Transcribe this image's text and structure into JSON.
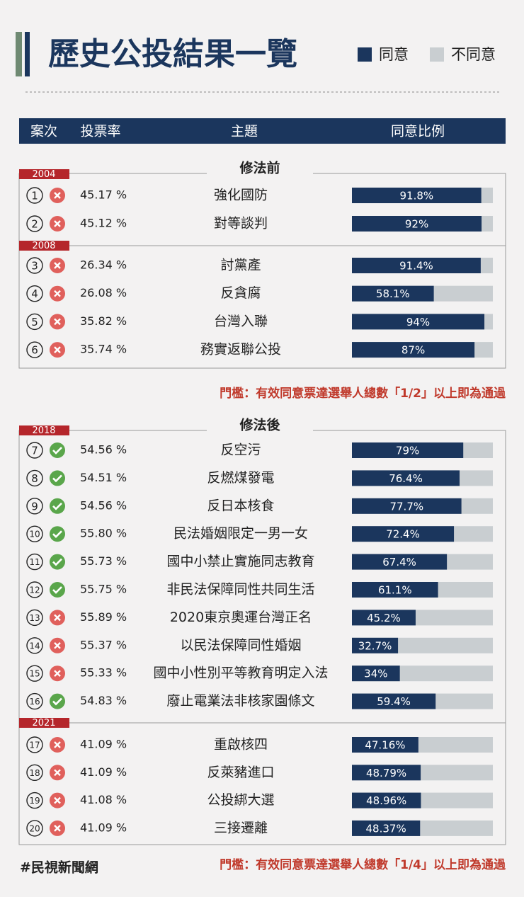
{
  "title": "歷史公投結果一覽",
  "legend": [
    {
      "label": "同意",
      "color": "#1b365d"
    },
    {
      "label": "不同意",
      "color": "#c9ced1"
    }
  ],
  "columns": [
    "案次",
    "投票率",
    "主題",
    "同意比例"
  ],
  "sections": [
    {
      "label": "修法前",
      "note": "門檻：有效同意票達選舉人總數「1/2」以上即為通過",
      "groups": [
        {
          "year": "2004",
          "rows": [
            {
              "no": 1,
              "passed": false,
              "turnout": "45.17 %",
              "topic": "強化國防",
              "agree": 91.8,
              "agree_label": "91.8%"
            },
            {
              "no": 2,
              "passed": false,
              "turnout": "45.12 %",
              "topic": "對等談判",
              "agree": 92,
              "agree_label": "92%"
            }
          ]
        },
        {
          "year": "2008",
          "rows": [
            {
              "no": 3,
              "passed": false,
              "turnout": "26.34 %",
              "topic": "討黨產",
              "agree": 91.4,
              "agree_label": "91.4%"
            },
            {
              "no": 4,
              "passed": false,
              "turnout": "26.08 %",
              "topic": "反貪腐",
              "agree": 58.1,
              "agree_label": "58.1%"
            },
            {
              "no": 5,
              "passed": false,
              "turnout": "35.82 %",
              "topic": "台灣入聯",
              "agree": 94,
              "agree_label": "94%"
            },
            {
              "no": 6,
              "passed": false,
              "turnout": "35.74 %",
              "topic": "務實返聯公投",
              "agree": 87,
              "agree_label": "87%"
            }
          ]
        }
      ]
    },
    {
      "label": "修法後",
      "note": "門檻：有效同意票達選舉人總數「1/4」以上即為通過",
      "groups": [
        {
          "year": "2018",
          "rows": [
            {
              "no": 7,
              "passed": true,
              "turnout": "54.56 %",
              "topic": "反空污",
              "agree": 79,
              "agree_label": "79%"
            },
            {
              "no": 8,
              "passed": true,
              "turnout": "54.51 %",
              "topic": "反燃煤發電",
              "agree": 76.4,
              "agree_label": "76.4%"
            },
            {
              "no": 9,
              "passed": true,
              "turnout": "54.56 %",
              "topic": "反日本核食",
              "agree": 77.7,
              "agree_label": "77.7%"
            },
            {
              "no": 10,
              "passed": true,
              "turnout": "55.80 %",
              "topic": "民法婚姻限定一男一女",
              "agree": 72.4,
              "agree_label": "72.4%"
            },
            {
              "no": 11,
              "passed": true,
              "turnout": "55.73 %",
              "topic": "國中小禁止實施同志教育",
              "agree": 67.4,
              "agree_label": "67.4%"
            },
            {
              "no": 12,
              "passed": true,
              "turnout": "55.75 %",
              "topic": "非民法保障同性共同生活",
              "agree": 61.1,
              "agree_label": "61.1%"
            },
            {
              "no": 13,
              "passed": false,
              "turnout": "55.89 %",
              "topic": "2020東京奧運台灣正名",
              "agree": 45.2,
              "agree_label": "45.2%"
            },
            {
              "no": 14,
              "passed": false,
              "turnout": "55.37 %",
              "topic": "以民法保障同性婚姻",
              "agree": 32.7,
              "agree_label": "32.7%"
            },
            {
              "no": 15,
              "passed": false,
              "turnout": "55.33 %",
              "topic": "國中小性別平等教育明定入法",
              "agree": 34,
              "agree_label": "34%"
            },
            {
              "no": 16,
              "passed": true,
              "turnout": "54.83 %",
              "topic": "廢止電業法非核家園條文",
              "agree": 59.4,
              "agree_label": "59.4%"
            }
          ]
        },
        {
          "year": "2021",
          "rows": [
            {
              "no": 17,
              "passed": false,
              "turnout": "41.09 %",
              "topic": "重啟核四",
              "agree": 47.16,
              "agree_label": "47.16%"
            },
            {
              "no": 18,
              "passed": false,
              "turnout": "41.09 %",
              "topic": "反萊豬進口",
              "agree": 48.79,
              "agree_label": "48.79%"
            },
            {
              "no": 19,
              "passed": false,
              "turnout": "41.08 %",
              "topic": "公投綁大選",
              "agree": 48.96,
              "agree_label": "48.96%"
            },
            {
              "no": 20,
              "passed": false,
              "turnout": "41.09 %",
              "topic": "三接遷離",
              "agree": 48.37,
              "agree_label": "48.37%"
            }
          ]
        }
      ]
    }
  ],
  "footer": "#民視新聞網"
}
